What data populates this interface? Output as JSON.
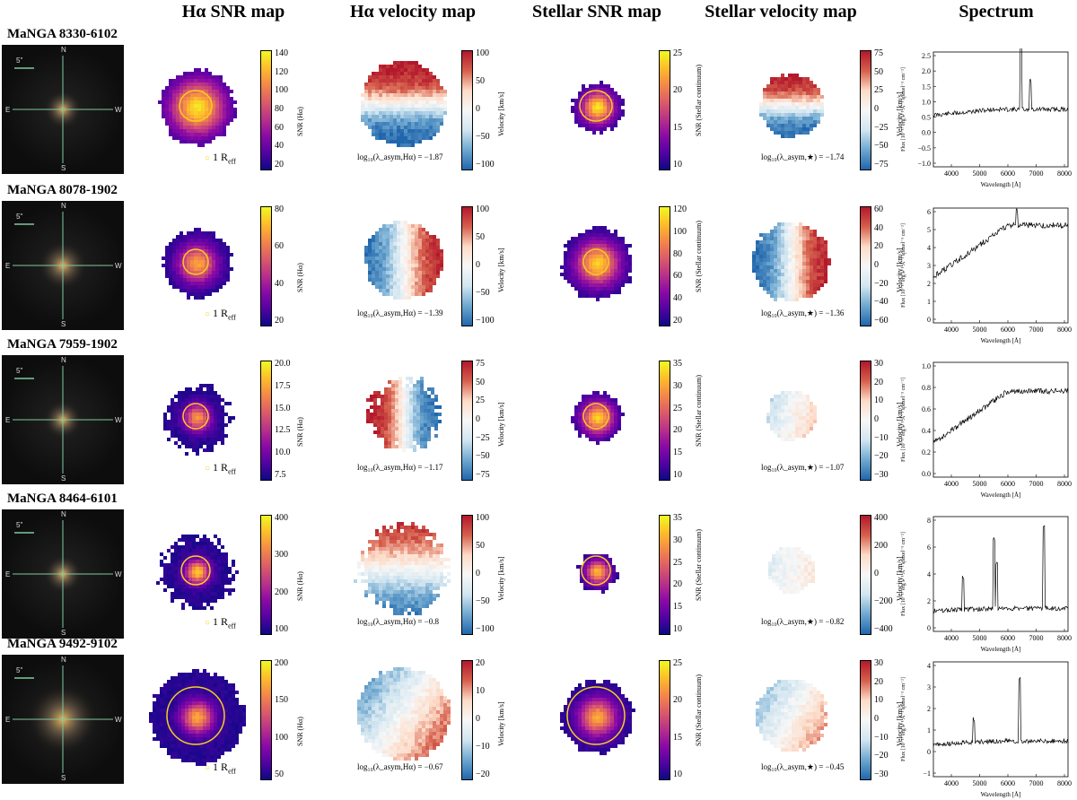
{
  "headers": {
    "sky": "",
    "ha_snr": "Hα SNR map",
    "ha_vel": "Hα velocity map",
    "st_snr": "Stellar SNR map",
    "st_vel": "Stellar velocity map",
    "spectrum": "Spectrum"
  },
  "labels": {
    "snr_ha": "SNR (Hα)",
    "snr_st": "SNR (Stellar continuum)",
    "velocity": "Velocity [km/s]",
    "reff": "1 R",
    "reff_sub": "eff",
    "scale": "5\"",
    "compass_n": "N",
    "compass_s": "S",
    "compass_e": "E",
    "compass_w": "W",
    "spec_x": "Wavelength [Å]",
    "spec_y": "Flux [10⁻¹⁷ erg s⁻¹ Å⁻¹ spaxel⁻¹ cm⁻²]"
  },
  "colors": {
    "snr_map": [
      "#0d0887",
      "#5402a3",
      "#8b0aa5",
      "#b93289",
      "#db5c68",
      "#f48849",
      "#febd2a",
      "#f0f921"
    ],
    "vel_map": [
      "#2166ac",
      "#6fa8d0",
      "#d1e5f0",
      "#f7f7f7",
      "#fddbc7",
      "#d6604d",
      "#b2182b"
    ],
    "circle": "#f5d020"
  },
  "rows": [
    {
      "title": "MaNGA 8330-6102",
      "ha_snr_ticks": [
        "140",
        "120",
        "100",
        "80",
        "60",
        "40",
        "20"
      ],
      "ha_vel_ticks": [
        "100",
        "50",
        "0",
        "−50",
        "−100"
      ],
      "st_snr_ticks": [
        "25",
        "20",
        "15",
        "10"
      ],
      "st_vel_ticks": [
        "75",
        "50",
        "25",
        "0",
        "−25",
        "−50",
        "−75"
      ],
      "ha_stat": "log₁₀(λ_asym,Hα) = −1.87",
      "st_stat": "log₁₀(λ_asym,★) = −1.74",
      "spec_yticks": [
        "2.5",
        "2.0",
        "1.5",
        "1.0",
        "0.5",
        "0.0",
        "−0.5",
        "−1.0"
      ],
      "spec_xticks": [
        "4000",
        "5000",
        "6000",
        "7000",
        "8000"
      ]
    },
    {
      "title": "MaNGA 8078-1902",
      "ha_snr_ticks": [
        "80",
        "60",
        "40",
        "20"
      ],
      "ha_vel_ticks": [
        "100",
        "50",
        "0",
        "−50",
        "−100"
      ],
      "st_snr_ticks": [
        "120",
        "100",
        "80",
        "60",
        "40",
        "20"
      ],
      "st_vel_ticks": [
        "60",
        "40",
        "20",
        "0",
        "−20",
        "−40",
        "−60"
      ],
      "ha_stat": "log₁₀(λ_asym,Hα) = −1.39",
      "st_stat": "log₁₀(λ_asym,★) = −1.36",
      "spec_yticks": [
        "6",
        "5",
        "4",
        "3",
        "2",
        "1",
        "0"
      ],
      "spec_xticks": [
        "4000",
        "5000",
        "6000",
        "7000",
        "8000"
      ]
    },
    {
      "title": "MaNGA 7959-1902",
      "ha_snr_ticks": [
        "20.0",
        "17.5",
        "15.0",
        "12.5",
        "10.0",
        "7.5"
      ],
      "ha_vel_ticks": [
        "75",
        "50",
        "25",
        "0",
        "−25",
        "−50",
        "−75"
      ],
      "st_snr_ticks": [
        "35",
        "30",
        "25",
        "20",
        "15",
        "10"
      ],
      "st_vel_ticks": [
        "30",
        "20",
        "10",
        "0",
        "−10",
        "−20",
        "−30"
      ],
      "ha_stat": "log₁₀(λ_asym,Hα) = −1.17",
      "st_stat": "log₁₀(λ_asym,★) = −1.07",
      "spec_yticks": [
        "1.0",
        "0.8",
        "0.6",
        "0.4",
        "0.2",
        "0.0"
      ],
      "spec_xticks": [
        "4000",
        "5000",
        "6000",
        "7000",
        "8000"
      ]
    },
    {
      "title": "MaNGA 8464-6101",
      "ha_snr_ticks": [
        "400",
        "300",
        "200",
        "100"
      ],
      "ha_vel_ticks": [
        "100",
        "50",
        "0",
        "−50",
        "−100"
      ],
      "st_snr_ticks": [
        "35",
        "30",
        "25",
        "20",
        "15",
        "10"
      ],
      "st_vel_ticks": [
        "400",
        "200",
        "0",
        "−200",
        "−400"
      ],
      "ha_stat": "log₁₀(λ_asym,Hα) = −0.8",
      "st_stat": "log₁₀(λ_asym,★) = −0.82",
      "spec_yticks": [
        "8",
        "6",
        "4",
        "2",
        "0"
      ],
      "spec_xticks": [
        "4000",
        "5000",
        "6000",
        "7000",
        "8000"
      ]
    },
    {
      "title": "MaNGA 9492-9102",
      "ha_snr_ticks": [
        "200",
        "150",
        "100",
        "50"
      ],
      "ha_vel_ticks": [
        "20",
        "10",
        "0",
        "−10",
        "−20"
      ],
      "st_snr_ticks": [
        "25",
        "20",
        "15",
        "10"
      ],
      "st_vel_ticks": [
        "30",
        "20",
        "10",
        "0",
        "−10",
        "−20",
        "−30"
      ],
      "ha_stat": "log₁₀(λ_asym,Hα) = −0.67",
      "st_stat": "log₁₀(λ_asym,★) = −0.45",
      "spec_yticks": [
        "4",
        "3",
        "2",
        "1",
        "0",
        "−1"
      ],
      "spec_xticks": [
        "4000",
        "5000",
        "6000",
        "7000",
        "8000"
      ]
    }
  ]
}
